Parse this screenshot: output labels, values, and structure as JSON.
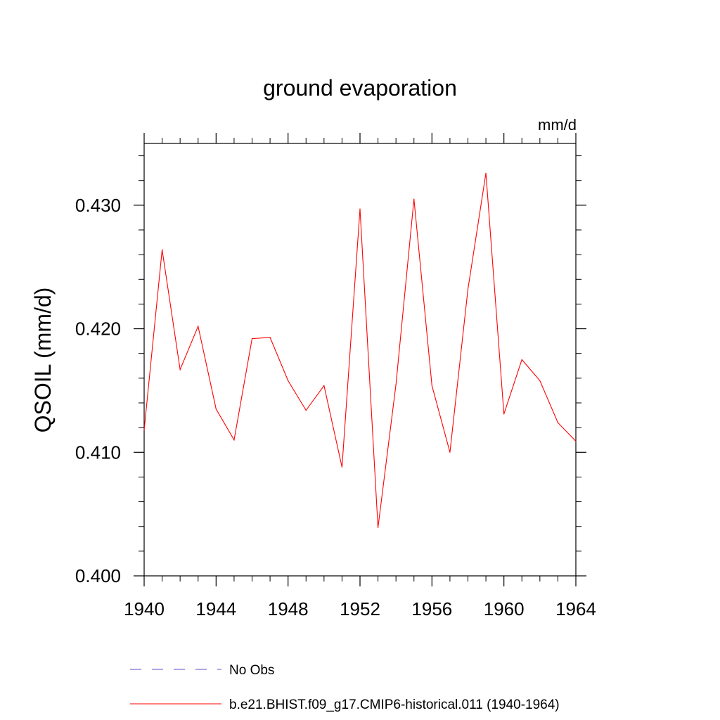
{
  "chart_data": {
    "type": "line",
    "title": "ground evaporation",
    "units": "mm/d",
    "ylabel": "QSOIL  (mm/d)",
    "xlabel": "",
    "xlim": [
      1940,
      1964
    ],
    "ylim": [
      0.4,
      0.435
    ],
    "x_ticks": [
      1940,
      1944,
      1948,
      1952,
      1956,
      1960,
      1964
    ],
    "x_tick_labels": [
      "1940",
      "1944",
      "1948",
      "1952",
      "1956",
      "1960",
      "1964"
    ],
    "y_ticks": [
      0.4,
      0.41,
      0.42,
      0.43
    ],
    "y_tick_labels": [
      "0.400",
      "0.410",
      "0.420",
      "0.430"
    ],
    "y_minor_step": 0.002,
    "x_minor_step": 1,
    "grid": false,
    "legend_position": "bottom",
    "legend": [
      {
        "label": "No Obs",
        "color": "#5a4fd0",
        "style": "dashed"
      },
      {
        "label": "b.e21.BHIST.f09_g17.CMIP6-historical.011 (1940-1964)",
        "color": "#ff0000",
        "style": "solid"
      }
    ],
    "series": [
      {
        "name": "b.e21.BHIST.f09_g17.CMIP6-historical.011 (1940-1964)",
        "color": "#ff0000",
        "x": [
          1940,
          1941,
          1942,
          1943,
          1944,
          1945,
          1946,
          1947,
          1948,
          1949,
          1950,
          1951,
          1952,
          1953,
          1954,
          1955,
          1956,
          1957,
          1958,
          1959,
          1960,
          1961,
          1962,
          1963,
          1964
        ],
        "y": [
          0.4118,
          0.4264,
          0.4167,
          0.4202,
          0.4135,
          0.411,
          0.4192,
          0.4193,
          0.4158,
          0.4134,
          0.4154,
          0.4088,
          0.4297,
          0.4039,
          0.4155,
          0.4305,
          0.4154,
          0.41,
          0.4232,
          0.4326,
          0.4131,
          0.4175,
          0.4158,
          0.4124,
          0.4109
        ]
      }
    ]
  }
}
